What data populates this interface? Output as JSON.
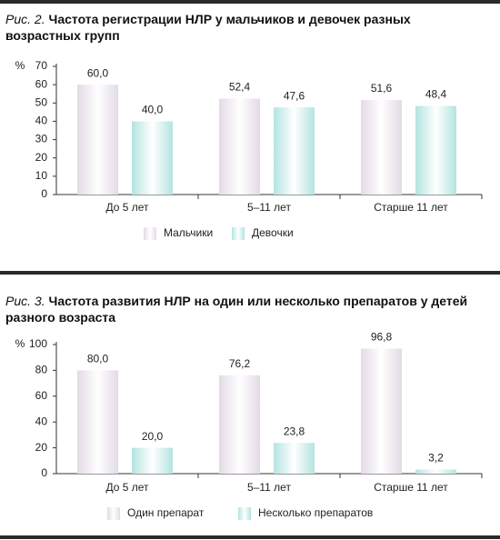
{
  "chart_data": [
    {
      "type": "bar",
      "label": "Рис. 2.",
      "title": "Частота регистрации НЛР у мальчиков и девочек разных возрастных групп",
      "y_label": "%",
      "categories": [
        "До 5 лет",
        "5–11 лет",
        "Старше 11 лет"
      ],
      "series": [
        {
          "name": "Мальчики",
          "color": "#e3dae6",
          "values": [
            60.0,
            52.4,
            51.6
          ],
          "value_labels": [
            "60,0",
            "52,4",
            "51,6"
          ]
        },
        {
          "name": "Девочки",
          "color": "#b3e4e0",
          "values": [
            40.0,
            47.6,
            48.4
          ],
          "value_labels": [
            "40,0",
            "47,6",
            "48,4"
          ]
        }
      ],
      "ylim": [
        0,
        70
      ],
      "yticks": [
        0,
        10,
        20,
        30,
        40,
        50,
        60,
        70
      ]
    },
    {
      "type": "bar",
      "label": "Рис. 3.",
      "title": "Частота развития НЛР на один или несколько препаратов у детей разного возраста",
      "y_label": "%",
      "categories": [
        "До 5 лет",
        "5–11 лет",
        "Старше 11 лет"
      ],
      "series": [
        {
          "name": "Один препарат",
          "color": "#e3dae6",
          "values": [
            80.0,
            76.2,
            96.8
          ],
          "value_labels": [
            "80,0",
            "76,2",
            "96,8"
          ]
        },
        {
          "name": "Несколько препаратов",
          "color": "#b3e4e0",
          "values": [
            20.0,
            23.8,
            3.2
          ],
          "value_labels": [
            "20,0",
            "23,8",
            "3,2"
          ]
        }
      ],
      "ylim": [
        0,
        100
      ],
      "yticks": [
        0,
        20,
        40,
        60,
        80,
        100
      ]
    }
  ]
}
